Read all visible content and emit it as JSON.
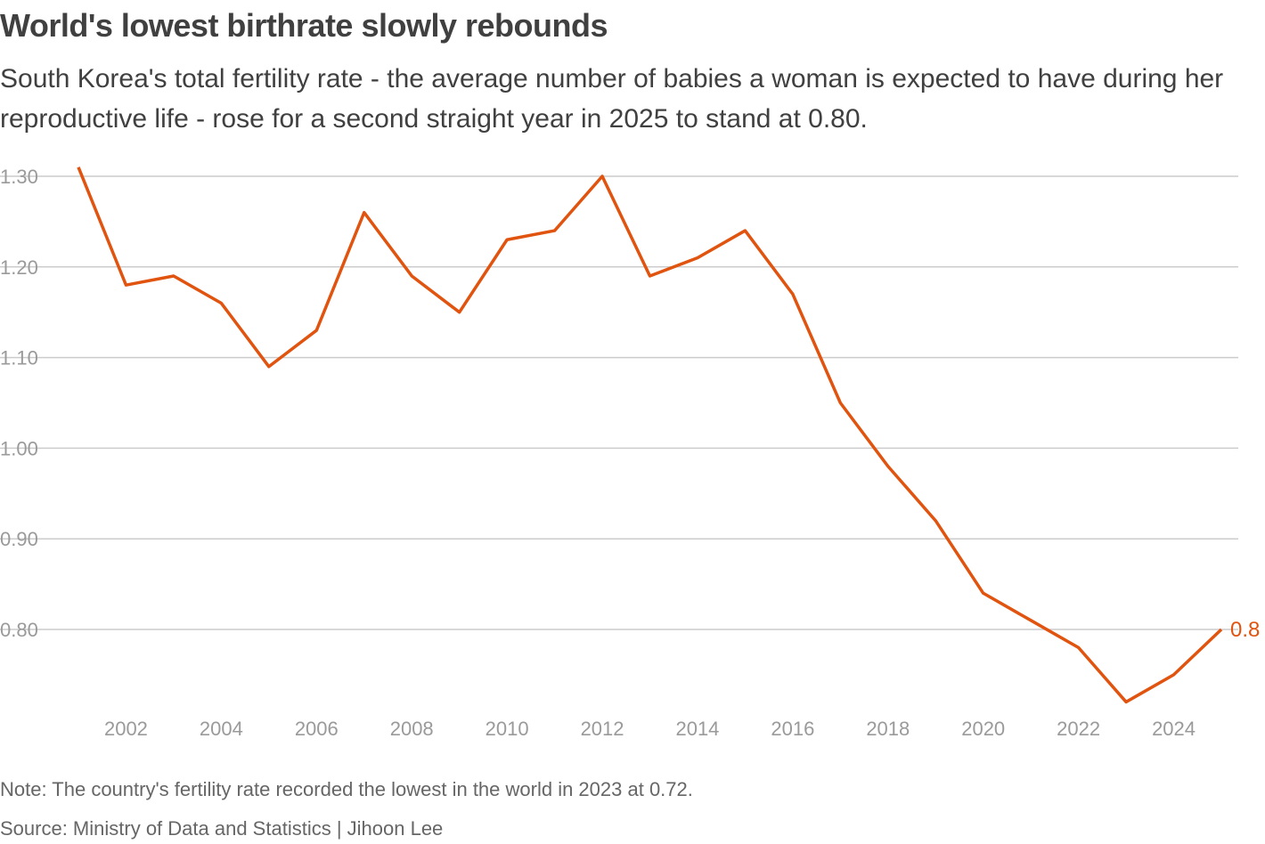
{
  "chart_data": {
    "type": "line",
    "title": "World's lowest birthrate slowly rebounds",
    "subtitle": "South Korea's total fertility rate - the average number of babies a woman is expected to have during her reproductive life - rose for a second straight year in 2025 to stand at 0.80.",
    "xlabel": "",
    "ylabel": "",
    "x": [
      2001,
      2002,
      2003,
      2004,
      2005,
      2006,
      2007,
      2008,
      2009,
      2010,
      2011,
      2012,
      2013,
      2014,
      2015,
      2016,
      2017,
      2018,
      2019,
      2020,
      2021,
      2022,
      2023,
      2024,
      2025
    ],
    "series": [
      {
        "name": "Total fertility rate",
        "color": "#e0540f",
        "values": [
          1.31,
          1.18,
          1.19,
          1.16,
          1.09,
          1.13,
          1.26,
          1.19,
          1.15,
          1.23,
          1.24,
          1.3,
          1.19,
          1.21,
          1.24,
          1.17,
          1.05,
          0.98,
          0.92,
          0.84,
          0.81,
          0.78,
          0.72,
          0.75,
          0.8
        ]
      }
    ],
    "ylim": [
      0.7,
      1.32
    ],
    "xlim": [
      2001,
      2025
    ],
    "yticks": [
      {
        "v": 1.3,
        "label": "1.30"
      },
      {
        "v": 1.2,
        "label": "1.20"
      },
      {
        "v": 1.1,
        "label": "1.10"
      },
      {
        "v": 1.0,
        "label": "1.00"
      },
      {
        "v": 0.9,
        "label": "0.90"
      },
      {
        "v": 0.8,
        "label": "0.80"
      }
    ],
    "xticks": [
      {
        "v": 2002,
        "label": "2002"
      },
      {
        "v": 2004,
        "label": "2004"
      },
      {
        "v": 2006,
        "label": "2006"
      },
      {
        "v": 2008,
        "label": "2008"
      },
      {
        "v": 2010,
        "label": "2010"
      },
      {
        "v": 2012,
        "label": "2012"
      },
      {
        "v": 2014,
        "label": "2014"
      },
      {
        "v": 2016,
        "label": "2016"
      },
      {
        "v": 2018,
        "label": "2018"
      },
      {
        "v": 2020,
        "label": "2020"
      },
      {
        "v": 2022,
        "label": "2022"
      },
      {
        "v": 2024,
        "label": "2024"
      }
    ],
    "end_label": "0.8",
    "grid": true,
    "legend": "none"
  },
  "note": "Note: The country's fertility rate recorded the lowest in the world in 2023 at 0.72.",
  "source": "Source: Ministry of Data and Statistics | Jihoon Lee"
}
